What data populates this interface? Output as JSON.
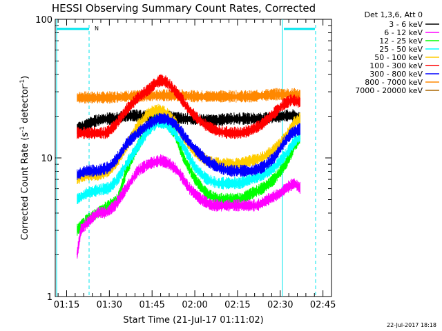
{
  "chart_data": {
    "type": "line",
    "title": "HESSI Observing Summary Count Rates, Corrected",
    "xlabel": "Start Time (21-Jul-17 01:11:02)",
    "ylabel_parts": [
      "Corrected Count Rate (s",
      "-1",
      " detector",
      "-1",
      ")"
    ],
    "y_scale": "log",
    "ylim": [
      1,
      100
    ],
    "xlim_minutes": [
      71,
      168
    ],
    "x_ticks": [
      {
        "t": 75,
        "label": "01:15"
      },
      {
        "t": 90,
        "label": "01:30"
      },
      {
        "t": 105,
        "label": "01:45"
      },
      {
        "t": 120,
        "label": "02:00"
      },
      {
        "t": 135,
        "label": "02:15"
      },
      {
        "t": 150,
        "label": "02:30"
      },
      {
        "t": 165,
        "label": "02:45"
      }
    ],
    "y_ticks": [
      {
        "v": 1,
        "label": "1"
      },
      {
        "v": 10,
        "label": "10"
      },
      {
        "v": 100,
        "label": "100"
      }
    ],
    "legend_title": "Det 1,3,6, Att 0",
    "series": [
      {
        "name": "3 - 6 keV",
        "color": "#000000",
        "points": [
          [
            78.7,
            16
          ],
          [
            84,
            18
          ],
          [
            88,
            19
          ],
          [
            92,
            19
          ],
          [
            96,
            20
          ],
          [
            100,
            20
          ],
          [
            104,
            19.5
          ],
          [
            108,
            19.5
          ],
          [
            112,
            19.5
          ],
          [
            116,
            19
          ],
          [
            120,
            19
          ],
          [
            124,
            18.5
          ],
          [
            128,
            18.5
          ],
          [
            132,
            19
          ],
          [
            136,
            19
          ],
          [
            140,
            19
          ],
          [
            144,
            19
          ],
          [
            148,
            19.5
          ],
          [
            152,
            20
          ],
          [
            155,
            20
          ],
          [
            157,
            19
          ]
        ]
      },
      {
        "name": "6 - 12 keV",
        "color": "#ff00ff",
        "points": [
          [
            78.7,
            2
          ],
          [
            80,
            3
          ],
          [
            83,
            3.5
          ],
          [
            86,
            4
          ],
          [
            89,
            4
          ],
          [
            92,
            4.5
          ],
          [
            96,
            6
          ],
          [
            100,
            8
          ],
          [
            104,
            9
          ],
          [
            108,
            9.5
          ],
          [
            111,
            9
          ],
          [
            114,
            8
          ],
          [
            118,
            6
          ],
          [
            122,
            5
          ],
          [
            126,
            4.5
          ],
          [
            130,
            4.5
          ],
          [
            134,
            4.5
          ],
          [
            138,
            4.5
          ],
          [
            142,
            4.5
          ],
          [
            146,
            5
          ],
          [
            150,
            5.5
          ],
          [
            152,
            6
          ],
          [
            155,
            6.5
          ],
          [
            157,
            6
          ]
        ]
      },
      {
        "name": "12 - 25 keV",
        "color": "#00ff00",
        "points": [
          [
            78.7,
            3
          ],
          [
            82,
            3.5
          ],
          [
            86,
            4
          ],
          [
            90,
            4.5
          ],
          [
            93,
            5
          ],
          [
            96,
            8
          ],
          [
            100,
            12
          ],
          [
            104,
            17
          ],
          [
            107,
            19
          ],
          [
            110,
            18
          ],
          [
            113,
            15
          ],
          [
            116,
            10
          ],
          [
            120,
            7
          ],
          [
            124,
            5.5
          ],
          [
            128,
            5
          ],
          [
            132,
            5
          ],
          [
            136,
            5
          ],
          [
            140,
            5.5
          ],
          [
            144,
            6
          ],
          [
            148,
            7
          ],
          [
            152,
            9
          ],
          [
            155,
            12
          ],
          [
            157,
            14
          ]
        ]
      },
      {
        "name": "25 - 50 keV",
        "color": "#00ffff",
        "points": [
          [
            78.7,
            5
          ],
          [
            82,
            5.5
          ],
          [
            86,
            5.8
          ],
          [
            90,
            6
          ],
          [
            93,
            7
          ],
          [
            96,
            9
          ],
          [
            100,
            12
          ],
          [
            104,
            16
          ],
          [
            107,
            18
          ],
          [
            110,
            17.5
          ],
          [
            113,
            15
          ],
          [
            116,
            12
          ],
          [
            120,
            8.5
          ],
          [
            124,
            7
          ],
          [
            128,
            6.5
          ],
          [
            132,
            6.5
          ],
          [
            136,
            6.5
          ],
          [
            140,
            7
          ],
          [
            144,
            7.5
          ],
          [
            148,
            8.5
          ],
          [
            152,
            10.5
          ],
          [
            155,
            13
          ],
          [
            157,
            14
          ]
        ]
      },
      {
        "name": "50 - 100 keV",
        "color": "#ffcc00",
        "points": [
          [
            78.7,
            7
          ],
          [
            82,
            7.5
          ],
          [
            86,
            7.5
          ],
          [
            90,
            8
          ],
          [
            93,
            9.5
          ],
          [
            96,
            12
          ],
          [
            100,
            17
          ],
          [
            104,
            21
          ],
          [
            107,
            22
          ],
          [
            110,
            21
          ],
          [
            113,
            18
          ],
          [
            116,
            14
          ],
          [
            120,
            11
          ],
          [
            124,
            9.5
          ],
          [
            128,
            9
          ],
          [
            132,
            9
          ],
          [
            136,
            9
          ],
          [
            140,
            9.5
          ],
          [
            144,
            10
          ],
          [
            148,
            11.5
          ],
          [
            152,
            14
          ],
          [
            155,
            18
          ],
          [
            157,
            19
          ]
        ]
      },
      {
        "name": "100 - 300 keV",
        "color": "#ff0000",
        "points": [
          [
            78.7,
            15
          ],
          [
            82,
            15
          ],
          [
            86,
            15
          ],
          [
            89,
            15
          ],
          [
            92,
            17
          ],
          [
            96,
            22
          ],
          [
            100,
            27
          ],
          [
            104,
            31
          ],
          [
            106,
            34
          ],
          [
            108,
            36
          ],
          [
            110,
            35
          ],
          [
            112,
            32
          ],
          [
            115,
            27
          ],
          [
            118,
            22
          ],
          [
            121,
            19
          ],
          [
            124,
            17
          ],
          [
            128,
            15.5
          ],
          [
            132,
            15
          ],
          [
            136,
            15
          ],
          [
            139,
            15.5
          ],
          [
            143,
            17
          ],
          [
            147,
            20
          ],
          [
            151,
            24
          ],
          [
            154,
            26
          ],
          [
            157,
            25
          ]
        ]
      },
      {
        "name": "300 - 800 keV",
        "color": "#0000ff",
        "points": [
          [
            78.7,
            7.5
          ],
          [
            82,
            8
          ],
          [
            86,
            8
          ],
          [
            90,
            8.5
          ],
          [
            93,
            10
          ],
          [
            96,
            12.5
          ],
          [
            100,
            15
          ],
          [
            104,
            17.5
          ],
          [
            107,
            19
          ],
          [
            110,
            19
          ],
          [
            113,
            17.5
          ],
          [
            116,
            14.5
          ],
          [
            120,
            11.5
          ],
          [
            124,
            9.5
          ],
          [
            128,
            8.5
          ],
          [
            132,
            8
          ],
          [
            136,
            8
          ],
          [
            140,
            8
          ],
          [
            144,
            8.5
          ],
          [
            148,
            10
          ],
          [
            151,
            12.5
          ],
          [
            154,
            15
          ],
          [
            157,
            16
          ]
        ]
      },
      {
        "name": "800 - 7000 keV",
        "color": "#ff8800",
        "points": [
          [
            78.7,
            27
          ],
          [
            84,
            27
          ],
          [
            90,
            27
          ],
          [
            96,
            27.5
          ],
          [
            100,
            27.5
          ],
          [
            104,
            28
          ],
          [
            108,
            28
          ],
          [
            112,
            28
          ],
          [
            116,
            28
          ],
          [
            120,
            27.5
          ],
          [
            124,
            27.5
          ],
          [
            128,
            27.5
          ],
          [
            132,
            27.5
          ],
          [
            136,
            27.5
          ],
          [
            140,
            27.5
          ],
          [
            144,
            28
          ],
          [
            148,
            28.5
          ],
          [
            152,
            28.5
          ],
          [
            155,
            28.5
          ],
          [
            157,
            28
          ]
        ]
      },
      {
        "name": "7000 - 20000 keV",
        "color": "#aa6600",
        "points": []
      }
    ],
    "attenuator_flag_label": "N",
    "date_stamp": "22-Jul-2017 18:18"
  }
}
